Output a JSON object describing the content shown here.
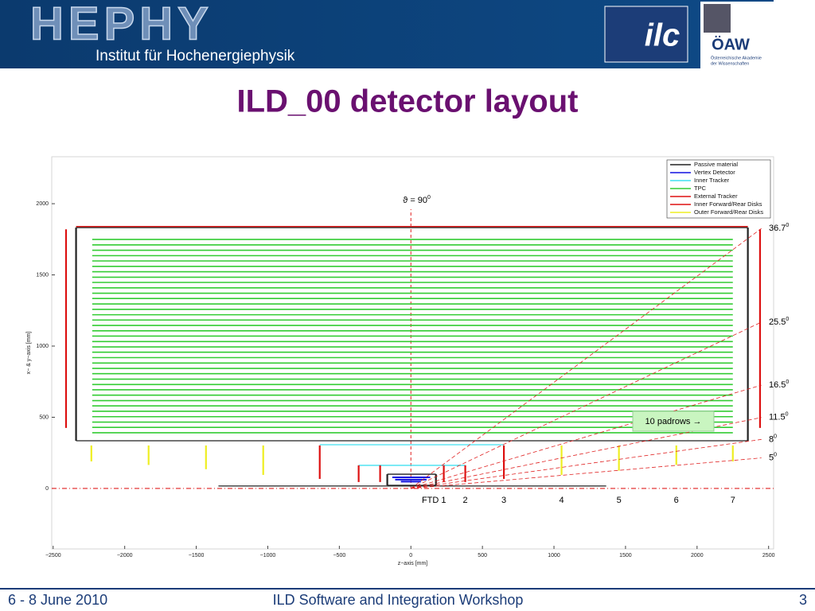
{
  "header": {
    "logo": "HEPHY",
    "institute": "Institut für Hochenergiephysik",
    "ilc_logo": "ilc",
    "oaw_logo": "ÖAW",
    "oaw_line1": "Österreichische Akademie",
    "oaw_line2": "der Wissenschaften"
  },
  "title": "ILD_00 detector layout",
  "chart_data": {
    "type": "layout",
    "xlabel": "z−axis [mm]",
    "ylabel": "x− & y−axis [mm]",
    "xlim": [
      -2510,
      2535
    ],
    "ylim": [
      -425,
      2330
    ],
    "xticks": [
      {
        "value": -2500,
        "label": "−2500"
      },
      {
        "value": -2000,
        "label": "−2000"
      },
      {
        "value": -1500,
        "label": "−1500"
      },
      {
        "value": -1000,
        "label": "−1000"
      },
      {
        "value": -500,
        "label": "−500"
      },
      0,
      500,
      1000,
      1500,
      2000,
      2500
    ],
    "yticks": [
      0,
      500,
      1000,
      1500,
      2000
    ],
    "legend": "upper right",
    "series": [
      {
        "name": "Passive material",
        "color": "#222222",
        "segments": [
          [
            -2340,
            335,
            2355,
            335
          ],
          [
            -2340,
            1832,
            2355,
            1832
          ],
          [
            -2340,
            335,
            -2340,
            1832
          ],
          [
            2355,
            335,
            2355,
            1832
          ],
          [
            -165,
            22,
            175,
            22
          ],
          [
            -165,
            100,
            175,
            100
          ],
          [
            -165,
            22,
            -165,
            100
          ],
          [
            175,
            22,
            175,
            100
          ],
          [
            -1345,
            17,
            1365,
            17
          ]
        ]
      },
      {
        "name": "Vertex Detector",
        "color": "#1010e0",
        "segments": [
          [
            -130,
            78,
            135,
            78
          ],
          [
            -110,
            62,
            110,
            62
          ],
          [
            -70,
            48,
            70,
            48
          ]
        ]
      },
      {
        "name": "Inner Tracker",
        "color": "#40e0f0",
        "segments": [
          [
            -637,
            307,
            650,
            307
          ],
          [
            -365,
            162,
            380,
            162
          ]
        ]
      },
      {
        "name": "TPC",
        "color": "#33cc33",
        "zrange": [
          -2227,
          2250
        ],
        "radii": [
          391,
          429,
          466,
          504,
          542,
          580,
          617,
          655,
          693,
          730,
          768,
          806,
          843,
          881,
          919,
          957,
          994,
          1032,
          1070,
          1107,
          1145,
          1183,
          1220,
          1258,
          1296,
          1334,
          1371,
          1409,
          1447,
          1484,
          1522,
          1560,
          1598,
          1635,
          1673,
          1711,
          1749
        ]
      },
      {
        "name": "External Tracker",
        "color": "#dd1111",
        "segments": [
          [
            -2340,
            1840,
            2355,
            1840
          ],
          [
            -2410,
            425,
            -2410,
            1820
          ],
          [
            2440,
            425,
            2440,
            1820
          ]
        ]
      },
      {
        "name": "Inner Forward/Rear Disks",
        "color": "#dd1111",
        "segments": [
          [
            -637,
            67,
            -637,
            302
          ],
          [
            -365,
            45,
            -365,
            162
          ],
          [
            -215,
            45,
            -215,
            162
          ],
          [
            230,
            45,
            230,
            162
          ],
          [
            380,
            45,
            380,
            162
          ],
          [
            650,
            67,
            650,
            302
          ]
        ]
      },
      {
        "name": "Outer Forward/Rear Disks",
        "color": "#eeee22",
        "segments": [
          [
            -2233,
            190,
            -2233,
            302
          ],
          [
            -1833,
            165,
            -1833,
            302
          ],
          [
            -1432,
            135,
            -1432,
            302
          ],
          [
            -1032,
            95,
            -1032,
            302
          ],
          [
            1053,
            95,
            1053,
            302
          ],
          [
            1454,
            125,
            1454,
            302
          ],
          [
            1855,
            165,
            1855,
            302
          ],
          [
            2250,
            190,
            2250,
            302
          ]
        ]
      }
    ],
    "theta_lines": [
      {
        "value": 36.7,
        "label": "36.7"
      },
      {
        "value": 25.5,
        "label": "25.5"
      },
      {
        "value": 16.5,
        "label": "16.5"
      },
      {
        "value": 11.5,
        "label": "11.5"
      },
      {
        "value": 8,
        "label": "8"
      },
      {
        "value": 5,
        "label": "5"
      }
    ],
    "degree_mark": "0",
    "theta90_label": "ϑ = 90",
    "ftd_labels": [
      "FTD 1",
      "2",
      "3",
      "4",
      "5",
      "6",
      "7"
    ],
    "ftd_z": [
      135,
      380,
      650,
      1053,
      1454,
      1855,
      2250
    ],
    "padrows_note": "10 padrows →"
  },
  "footer": {
    "date": "6 - 8 June 2010",
    "event": "ILD Software and Integration Workshop",
    "page": "3"
  }
}
